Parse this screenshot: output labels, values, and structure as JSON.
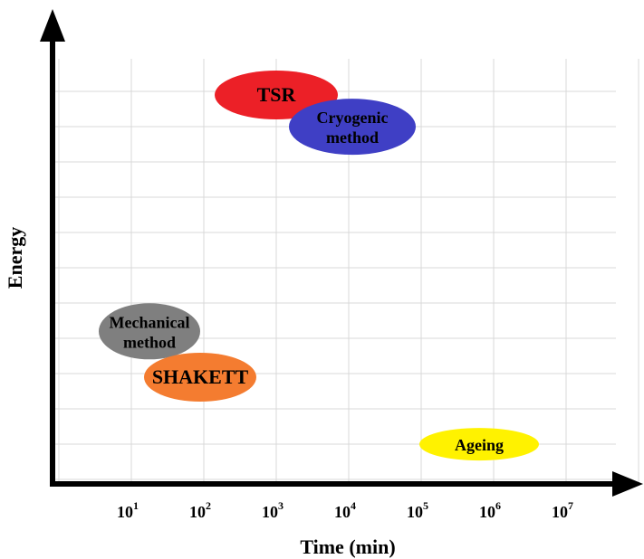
{
  "chart_data": {
    "type": "scatter",
    "title": "",
    "xlabel": "Time (min)",
    "ylabel": "Energy",
    "x_scale": "log",
    "x_ticks": [
      {
        "base": "10",
        "exp": "1"
      },
      {
        "base": "10",
        "exp": "2"
      },
      {
        "base": "10",
        "exp": "3"
      },
      {
        "base": "10",
        "exp": "4"
      },
      {
        "base": "10",
        "exp": "5"
      },
      {
        "base": "10",
        "exp": "6"
      },
      {
        "base": "10",
        "exp": "7"
      }
    ],
    "grid": true,
    "regions": [
      {
        "label_lines": [
          "TSR"
        ],
        "color": "#ec2027",
        "log10_x": 3.0,
        "energy_level": 10.0,
        "span_log10": 1.7
      },
      {
        "label_lines": [
          "Cryogenic",
          "method"
        ],
        "color": "#3f3fc5",
        "log10_x": 4.05,
        "energy_level": 9.1,
        "span_log10": 1.75
      },
      {
        "label_lines": [
          "Mechanical",
          "method"
        ],
        "color": "#7f7f7f",
        "log10_x": 1.25,
        "energy_level": 3.3,
        "span_log10": 1.4
      },
      {
        "label_lines": [
          "SHAKETT"
        ],
        "color": "#f47c30",
        "log10_x": 1.95,
        "energy_level": 2.0,
        "span_log10": 1.55
      },
      {
        "label_lines": [
          "Ageing"
        ],
        "color": "#fff200",
        "log10_x": 5.8,
        "energy_level": 0.1,
        "span_log10": 1.65
      }
    ]
  }
}
